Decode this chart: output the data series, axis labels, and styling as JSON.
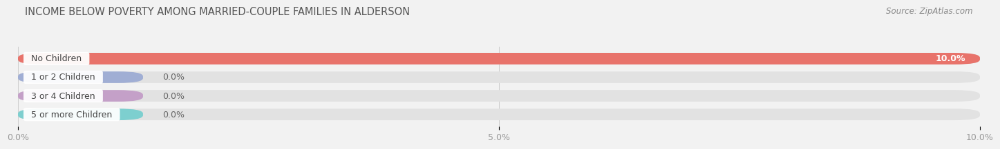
{
  "title": "INCOME BELOW POVERTY AMONG MARRIED-COUPLE FAMILIES IN ALDERSON",
  "source": "Source: ZipAtlas.com",
  "categories": [
    "No Children",
    "1 or 2 Children",
    "3 or 4 Children",
    "5 or more Children"
  ],
  "values": [
    10.0,
    0.0,
    0.0,
    0.0
  ],
  "bar_colors": [
    "#e8736b",
    "#a0aed4",
    "#c4a0c8",
    "#7dcfcf"
  ],
  "xlim": [
    0,
    10.0
  ],
  "xticks": [
    0.0,
    5.0,
    10.0
  ],
  "xticklabels": [
    "0.0%",
    "5.0%",
    "10.0%"
  ],
  "background_color": "#f2f2f2",
  "bar_background_color": "#e2e2e2",
  "title_fontsize": 10.5,
  "tick_fontsize": 9,
  "label_fontsize": 9,
  "value_fontsize": 9
}
